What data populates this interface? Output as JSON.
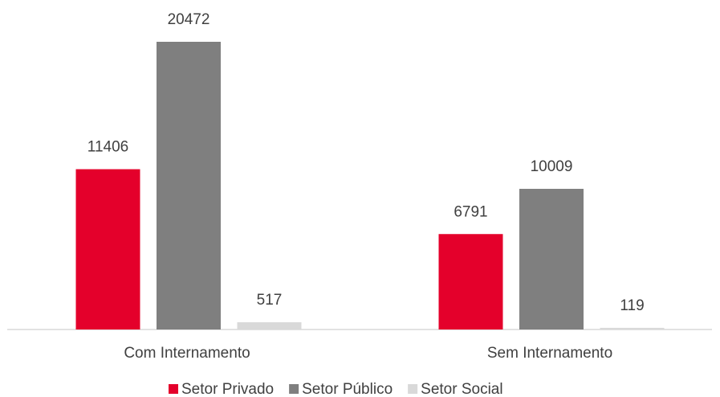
{
  "chart_data": {
    "type": "bar",
    "categories": [
      "Com Internamento",
      "Sem Internamento"
    ],
    "series": [
      {
        "name": "Setor Privado",
        "color": "#e4002b",
        "values": [
          11406,
          6791
        ]
      },
      {
        "name": "Setor Público",
        "color": "#7f7f7f",
        "values": [
          20472,
          10009
        ]
      },
      {
        "name": "Setor Social",
        "color": "#d9d9d9",
        "values": [
          517,
          119
        ]
      }
    ]
  }
}
